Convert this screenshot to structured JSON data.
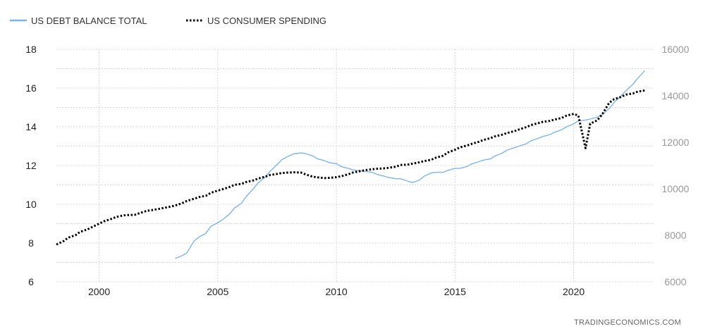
{
  "chart_data": {
    "type": "line",
    "title": "",
    "xlabel": "",
    "ylabel": "",
    "xlim": [
      1998.2,
      2023.4
    ],
    "x_ticks": [
      2000,
      2005,
      2010,
      2015,
      2020
    ],
    "y_left": {
      "lim": [
        6,
        18
      ],
      "ticks": [
        6,
        8,
        10,
        12,
        14,
        16,
        18
      ]
    },
    "y_right": {
      "lim": [
        6000,
        16000
      ],
      "ticks": [
        6000,
        8000,
        10000,
        12000,
        14000,
        16000
      ]
    },
    "grid": true,
    "legend_position": "top-left",
    "source": "TRADINGECONOMICS.COM",
    "series": [
      {
        "name": "US DEBT BALANCE TOTAL",
        "axis": "left",
        "color": "#7cb5ec",
        "style": "solid",
        "x": [
          2003.2,
          2003.5,
          2003.7,
          2003.8,
          2004.0,
          2004.2,
          2004.5,
          2004.7,
          2005.0,
          2005.2,
          2005.5,
          2005.7,
          2006.0,
          2006.2,
          2006.5,
          2006.7,
          2007.0,
          2007.2,
          2007.5,
          2007.7,
          2008.0,
          2008.2,
          2008.5,
          2008.7,
          2009.0,
          2009.2,
          2009.5,
          2009.7,
          2010.0,
          2010.2,
          2010.5,
          2010.7,
          2011.0,
          2011.2,
          2011.5,
          2011.7,
          2012.0,
          2012.2,
          2012.5,
          2012.7,
          2013.0,
          2013.2,
          2013.5,
          2013.7,
          2014.0,
          2014.2,
          2014.5,
          2014.7,
          2015.0,
          2015.2,
          2015.5,
          2015.7,
          2016.0,
          2016.2,
          2016.5,
          2016.7,
          2017.0,
          2017.2,
          2017.5,
          2017.7,
          2018.0,
          2018.2,
          2018.5,
          2018.7,
          2019.0,
          2019.2,
          2019.5,
          2019.7,
          2020.0,
          2020.2,
          2020.5,
          2020.7,
          2021.0,
          2021.2,
          2021.5,
          2021.7,
          2022.0,
          2022.2,
          2022.5,
          2022.7,
          2023.0
        ],
        "values": [
          7.2,
          7.35,
          7.5,
          7.7,
          8.1,
          8.3,
          8.5,
          8.85,
          9.05,
          9.2,
          9.5,
          9.8,
          10.05,
          10.4,
          10.8,
          11.1,
          11.4,
          11.7,
          12.05,
          12.3,
          12.5,
          12.6,
          12.65,
          12.62,
          12.5,
          12.35,
          12.25,
          12.15,
          12.1,
          11.95,
          11.85,
          11.78,
          11.72,
          11.7,
          11.65,
          11.55,
          11.45,
          11.38,
          11.32,
          11.32,
          11.2,
          11.12,
          11.25,
          11.45,
          11.62,
          11.65,
          11.65,
          11.75,
          11.85,
          11.85,
          11.95,
          12.08,
          12.2,
          12.28,
          12.35,
          12.5,
          12.65,
          12.8,
          12.92,
          13.0,
          13.12,
          13.28,
          13.4,
          13.5,
          13.6,
          13.72,
          13.85,
          14.0,
          14.15,
          14.3,
          14.35,
          14.4,
          14.5,
          14.62,
          14.95,
          15.25,
          15.6,
          15.85,
          16.2,
          16.5,
          16.9
        ]
      },
      {
        "name": "US CONSUMER SPENDING",
        "axis": "right",
        "color": "#000000",
        "style": "dotted",
        "x": [
          1998.2,
          1998.5,
          1998.7,
          1999.0,
          1999.2,
          1999.5,
          1999.7,
          2000.0,
          2000.2,
          2000.5,
          2000.7,
          2001.0,
          2001.2,
          2001.5,
          2001.7,
          2002.0,
          2002.2,
          2002.5,
          2002.7,
          2003.0,
          2003.2,
          2003.5,
          2003.7,
          2004.0,
          2004.2,
          2004.5,
          2004.7,
          2005.0,
          2005.2,
          2005.5,
          2005.7,
          2006.0,
          2006.2,
          2006.5,
          2006.7,
          2007.0,
          2007.2,
          2007.5,
          2007.7,
          2008.0,
          2008.2,
          2008.5,
          2008.7,
          2009.0,
          2009.2,
          2009.5,
          2009.7,
          2010.0,
          2010.2,
          2010.5,
          2010.7,
          2011.0,
          2011.2,
          2011.5,
          2011.7,
          2012.0,
          2012.2,
          2012.5,
          2012.7,
          2013.0,
          2013.2,
          2013.5,
          2013.7,
          2014.0,
          2014.2,
          2014.5,
          2014.7,
          2015.0,
          2015.2,
          2015.5,
          2015.7,
          2016.0,
          2016.2,
          2016.5,
          2016.7,
          2017.0,
          2017.2,
          2017.5,
          2017.7,
          2018.0,
          2018.2,
          2018.5,
          2018.7,
          2019.0,
          2019.2,
          2019.5,
          2019.7,
          2020.0,
          2020.2,
          2020.5,
          2020.7,
          2021.0,
          2021.2,
          2021.5,
          2021.7,
          2022.0,
          2022.2,
          2022.5,
          2022.7,
          2023.0
        ],
        "values": [
          7600,
          7750,
          7900,
          8000,
          8150,
          8250,
          8350,
          8500,
          8600,
          8700,
          8780,
          8850,
          8870,
          8880,
          8950,
          9050,
          9080,
          9130,
          9170,
          9230,
          9280,
          9380,
          9480,
          9570,
          9640,
          9700,
          9820,
          9920,
          9980,
          10080,
          10170,
          10210,
          10290,
          10360,
          10440,
          10520,
          10590,
          10640,
          10680,
          10700,
          10710,
          10700,
          10620,
          10520,
          10490,
          10460,
          10470,
          10500,
          10540,
          10620,
          10700,
          10760,
          10800,
          10840,
          10860,
          10880,
          10900,
          10950,
          11020,
          11040,
          11080,
          11140,
          11190,
          11250,
          11340,
          11420,
          11560,
          11680,
          11780,
          11860,
          11930,
          12020,
          12100,
          12180,
          12260,
          12330,
          12400,
          12480,
          12550,
          12650,
          12740,
          12820,
          12880,
          12920,
          12980,
          13050,
          13150,
          13220,
          13150,
          11750,
          12800,
          12950,
          13200,
          13700,
          13850,
          13950,
          14050,
          14100,
          14180,
          14230
        ]
      }
    ]
  }
}
